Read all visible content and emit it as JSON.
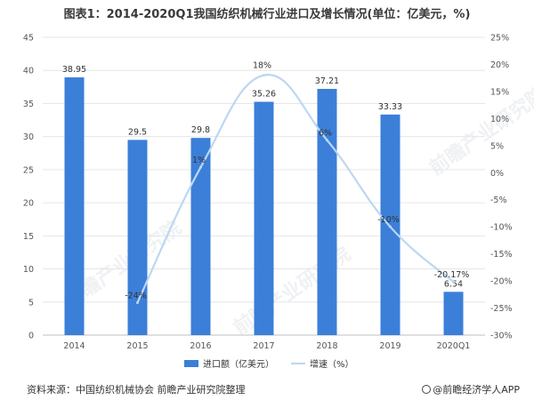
{
  "title": "图表1：2014-2020Q1我国纺织机械行业进口及增长情况(单位：亿美元，%)",
  "source": "资料来源：中国纺织机械协会 前瞻产业研究院整理",
  "brand": "@前瞻经济学人APP",
  "watermark": "前瞻产业研究院",
  "colors": {
    "bar": "#3b7fd9",
    "line": "#bcd7f2",
    "grid": "#e6e6e6",
    "axis_text": "#555555"
  },
  "chart_data": {
    "type": "bar",
    "title": "图表1：2014-2020Q1我国纺织机械行业进口及增长情况(单位：亿美元，%)",
    "categories": [
      "2014",
      "2015",
      "2016",
      "2017",
      "2018",
      "2019",
      "2020Q1"
    ],
    "series": [
      {
        "name": "进口额（亿美元）",
        "type": "bar",
        "axis": "left",
        "values": [
          38.95,
          29.5,
          29.8,
          35.26,
          37.21,
          33.33,
          6.54
        ],
        "labels": [
          "38.95",
          "29.5",
          "29.8",
          "35.26",
          "37.21",
          "33.33",
          "6.54"
        ]
      },
      {
        "name": "增速（%）",
        "type": "line",
        "axis": "right",
        "smooth": true,
        "values": [
          null,
          -24,
          1,
          18,
          6,
          -10,
          -20.17
        ],
        "labels": [
          "",
          "-24%",
          "1%",
          "18%",
          "6%",
          "-10%",
          "-20.17%"
        ]
      }
    ],
    "y_left": {
      "min": 0,
      "max": 45,
      "step": 5,
      "ticks": [
        "0",
        "5",
        "10",
        "15",
        "20",
        "25",
        "30",
        "35",
        "40",
        "45"
      ]
    },
    "y_right": {
      "min": -30,
      "max": 25,
      "step": 5,
      "ticks": [
        "-30%",
        "-25%",
        "-20%",
        "-15%",
        "-10%",
        "-5%",
        "0%",
        "5%",
        "10%",
        "15%",
        "20%",
        "25%"
      ]
    },
    "grid": true,
    "legend_position": "bottom"
  }
}
